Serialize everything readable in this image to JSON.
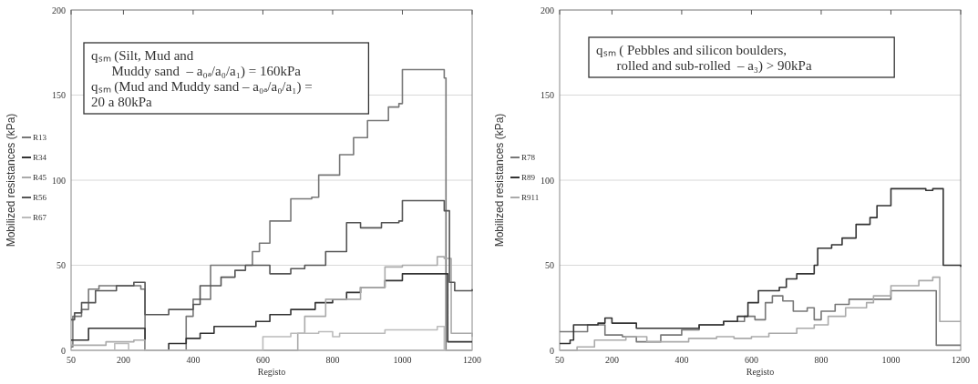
{
  "chart_data": [
    {
      "type": "step",
      "xlabel": "Registo",
      "ylabel": "Mobilized resistances (kPa)",
      "xlim": [
        50,
        1200
      ],
      "ylim": [
        0,
        200
      ],
      "xticks": [
        50,
        200,
        400,
        600,
        800,
        1000,
        1200
      ],
      "yticks": [
        0,
        50,
        100,
        150,
        200
      ],
      "grid": "y",
      "legend": "left",
      "annotations": [
        "qₛₘ (Silt, Mud and\n      Muddy sand  – a₀ₐ/a₀/a₁) = 160kPa\nqₛₘ (Mud and Muddy sand – a₀ₐ/a₀/a₁) =\n20 a 80kPa"
      ],
      "series": [
        {
          "name": "R13",
          "color": "#777777",
          "x": [
            50,
            55,
            80,
            100,
            130,
            250,
            262,
            380,
            400,
            450,
            550,
            570,
            590,
            620,
            680,
            740,
            760,
            820,
            860,
            900,
            960,
            990,
            1000,
            1120,
            1125,
            1200
          ],
          "values": [
            2,
            20,
            24,
            36,
            38,
            36,
            0,
            20,
            30,
            50,
            50,
            58,
            63,
            76,
            89,
            90,
            103,
            115,
            125,
            135,
            143,
            145,
            165,
            160,
            0,
            0
          ]
        },
        {
          "name": "R34",
          "color": "#333333",
          "x": [
            50,
            100,
            250,
            262,
            330,
            380,
            420,
            460,
            580,
            620,
            680,
            750,
            800,
            840,
            880,
            950,
            1000,
            1110,
            1130,
            1200
          ],
          "values": [
            6,
            13,
            13,
            0,
            4,
            7,
            10,
            14,
            17,
            21,
            24,
            28,
            30,
            34,
            37,
            41,
            45,
            45,
            5,
            5
          ]
        },
        {
          "name": "R45",
          "color": "#aaaaaa",
          "x": [
            50,
            150,
            200,
            230,
            250,
            262,
            680,
            700,
            720,
            780,
            840,
            880,
            950,
            1000,
            1100,
            1120,
            1140,
            1200
          ],
          "values": [
            3,
            5,
            5,
            6,
            6,
            0,
            0,
            10,
            20,
            30,
            30,
            37,
            49,
            50,
            55,
            54,
            10,
            8
          ]
        },
        {
          "name": "R56",
          "color": "#555555",
          "x": [
            50,
            60,
            80,
            120,
            180,
            230,
            262,
            330,
            400,
            420,
            480,
            520,
            550,
            600,
            620,
            680,
            720,
            780,
            840,
            880,
            940,
            990,
            1000,
            1120,
            1135,
            1150,
            1200
          ],
          "values": [
            18,
            22,
            28,
            35,
            38,
            40,
            21,
            24,
            27,
            38,
            43,
            47,
            50,
            50,
            45,
            48,
            50,
            58,
            75,
            72,
            75,
            76,
            88,
            82,
            40,
            35,
            36
          ]
        },
        {
          "name": "R67",
          "color": "#bbbbbb",
          "x": [
            50,
            175,
            215,
            262,
            580,
            600,
            680,
            760,
            800,
            820,
            870,
            950,
            1000,
            1100,
            1120,
            1200
          ],
          "values": [
            0,
            4,
            0,
            0,
            0,
            8,
            10,
            11,
            8,
            10,
            10,
            12,
            12,
            14,
            0,
            0
          ]
        }
      ]
    },
    {
      "type": "step",
      "xlabel": "Registo",
      "ylabel": "Mobilized resistances (kPa)",
      "xlim": [
        50,
        1200
      ],
      "ylim": [
        0,
        200
      ],
      "xticks": [
        50,
        200,
        400,
        600,
        800,
        1000,
        1200
      ],
      "yticks": [
        0,
        50,
        100,
        150,
        200
      ],
      "grid": "y",
      "legend": "left",
      "annotations": [
        "qₛₘ ( Pebbles and silicon boulders,\n      rolled and sub-rolled  – a₃) > 90kPa"
      ],
      "series": [
        {
          "name": "R78",
          "color": "#777777",
          "x": [
            50,
            130,
            165,
            180,
            230,
            270,
            340,
            400,
            450,
            520,
            580,
            610,
            640,
            660,
            690,
            720,
            760,
            780,
            800,
            840,
            880,
            940,
            1000,
            1110,
            1130,
            1200
          ],
          "values": [
            11,
            15,
            15,
            9,
            8,
            5,
            9,
            12,
            15,
            17,
            20,
            18,
            28,
            32,
            29,
            23,
            25,
            18,
            23,
            27,
            30,
            30,
            35,
            35,
            3,
            3
          ]
        },
        {
          "name": "R89",
          "color": "#333333",
          "x": [
            50,
            80,
            90,
            160,
            180,
            200,
            250,
            270,
            400,
            450,
            520,
            560,
            590,
            620,
            680,
            700,
            730,
            780,
            790,
            830,
            860,
            900,
            940,
            960,
            1000,
            1100,
            1120,
            1150,
            1200
          ],
          "values": [
            4,
            6,
            15,
            16,
            19,
            16,
            16,
            13,
            13,
            15,
            17,
            20,
            28,
            35,
            37,
            42,
            45,
            50,
            60,
            62,
            66,
            74,
            78,
            85,
            95,
            94,
            95,
            50,
            49
          ]
        },
        {
          "name": "R911",
          "color": "#aaaaaa",
          "x": [
            50,
            100,
            150,
            240,
            300,
            420,
            500,
            550,
            600,
            650,
            730,
            780,
            820,
            870,
            930,
            950,
            1000,
            1080,
            1120,
            1140,
            1200
          ],
          "values": [
            0,
            2,
            6,
            8,
            5,
            7,
            8,
            7,
            8,
            10,
            13,
            15,
            20,
            25,
            28,
            32,
            38,
            41,
            43,
            17,
            17
          ]
        }
      ]
    }
  ]
}
